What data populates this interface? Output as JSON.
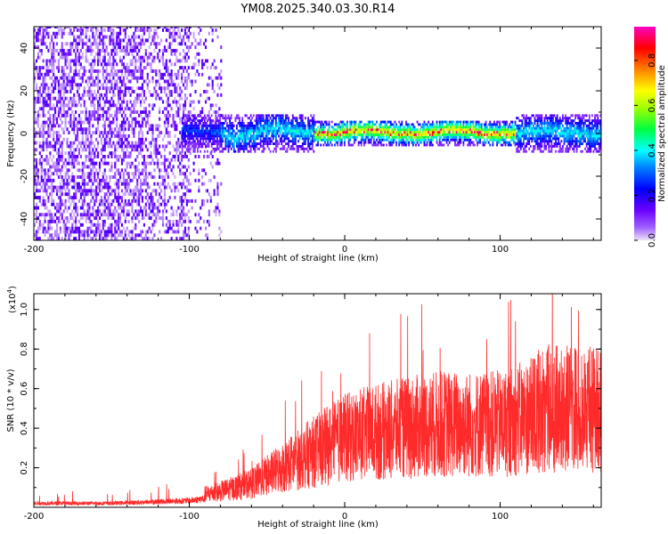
{
  "title": "YM08.2025.340.03.30.R14",
  "chart_data": [
    {
      "type": "heatmap",
      "xlabel": "Height of straight line (km)",
      "ylabel": "Frequency (Hz)",
      "xlim": [
        -200,
        165
      ],
      "ylim": [
        -50,
        50
      ],
      "xticks": [
        -200,
        -100,
        0,
        100
      ],
      "xtick_labels": [
        "-200",
        "-100",
        "0",
        "100"
      ],
      "yticks": [
        -40,
        -20,
        0,
        20,
        40
      ],
      "ytick_labels": [
        "-40",
        "-20",
        "0",
        "20",
        "40"
      ],
      "colorbar": {
        "label": "Normalized spectral amplitude",
        "range": [
          0,
          0.95
        ],
        "ticks": [
          0.0,
          0.2,
          0.4,
          0.6,
          0.8
        ],
        "tick_labels": [
          "0.0",
          "0.2",
          "0.4",
          "0.6",
          "0.8"
        ],
        "colormap": [
          "#e6d8f2",
          "#6b00ff",
          "#0000ff",
          "#00ffff",
          "#00ff00",
          "#ffff00",
          "#ff8000",
          "#ff0000",
          "#ff00ff"
        ]
      },
      "features": [
        {
          "name": "broadband noise",
          "x_range": [
            -200,
            -80
          ],
          "freq_range": [
            -50,
            50
          ],
          "amplitude": 0.08
        },
        {
          "name": "signal band",
          "x_range": [
            -105,
            165
          ],
          "freq_center": 0,
          "freq_halfwidth": 6,
          "peak_amplitude": 0.95,
          "peak_x_range": [
            -20,
            110
          ]
        }
      ]
    },
    {
      "type": "line",
      "xlabel": "Height of straight line (km)",
      "ylabel": "SNR (10 * v/v)",
      "y_multiplier": "(x10",
      "y_multiplier_exp": "4",
      "y_multiplier_close": ")",
      "xlim": [
        -200,
        165
      ],
      "ylim": [
        0,
        1.08
      ],
      "xticks": [
        -200,
        -100,
        0,
        100
      ],
      "xtick_labels": [
        "-200",
        "-100",
        "0",
        "100"
      ],
      "yticks": [
        0.2,
        0.4,
        0.6,
        0.8,
        1.0
      ],
      "ytick_labels": [
        "0.2",
        "0.4",
        "0.6",
        "0.8",
        "1.0"
      ],
      "color": "#ff2a2a",
      "series": [
        {
          "name": "SNR envelope",
          "x": [
            -200,
            -150,
            -100,
            -80,
            -60,
            -40,
            -20,
            0,
            20,
            40,
            60,
            80,
            100,
            115,
            130,
            150,
            165
          ],
          "values": [
            0.03,
            0.03,
            0.05,
            0.08,
            0.12,
            0.2,
            0.28,
            0.35,
            0.38,
            0.4,
            0.42,
            0.42,
            0.42,
            0.45,
            0.5,
            0.5,
            0.5
          ]
        }
      ]
    }
  ]
}
